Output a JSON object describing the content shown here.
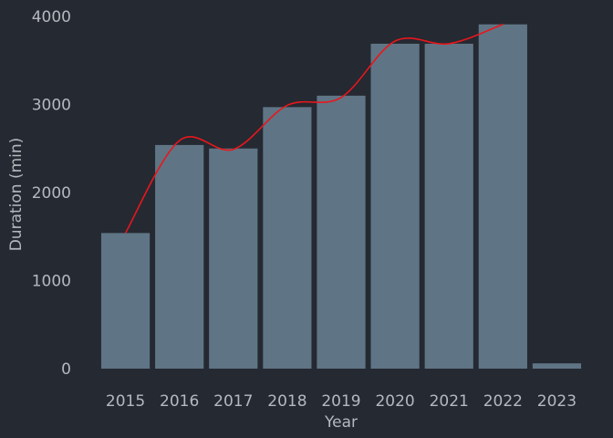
{
  "chart_data": {
    "type": "bar",
    "xlabel": "Year",
    "ylabel": "Duration (min)",
    "categories": [
      "2015",
      "2016",
      "2017",
      "2018",
      "2019",
      "2020",
      "2021",
      "2022",
      "2023"
    ],
    "values": [
      1540,
      2540,
      2500,
      2970,
      3100,
      3690,
      3690,
      3910,
      60
    ],
    "ylim": [
      0,
      4000
    ],
    "yticks": [
      0,
      1000,
      2000,
      3000,
      4000
    ],
    "grid": false,
    "legend": "none",
    "bar_color": "#5f7585",
    "trend_line": {
      "type": "smooth",
      "color": "#e8171c",
      "x": [
        "2015",
        "2016",
        "2017",
        "2018",
        "2019",
        "2020",
        "2021",
        "2022"
      ],
      "values": [
        1540,
        2590,
        2490,
        2990,
        3080,
        3720,
        3690,
        3910
      ]
    },
    "background": "#252932",
    "text_color": "#b5b9be"
  }
}
